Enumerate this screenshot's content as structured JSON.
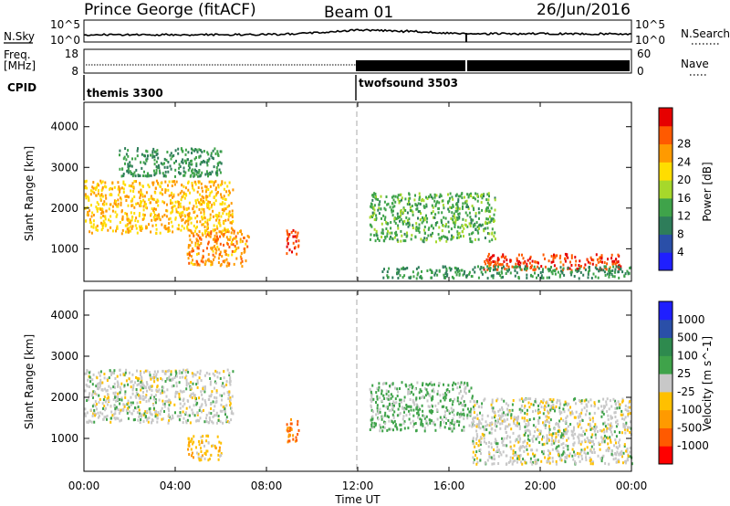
{
  "header": {
    "title": "Prince George (fitACF)",
    "beam": "Beam 01",
    "date": "26/Jun/2016"
  },
  "noise_panel": {
    "left_label": "N.Sky",
    "left_ticks": [
      "10^5",
      "10^0"
    ],
    "right_label": "N.Search",
    "right_ticks": [
      "10^5",
      "10^0"
    ]
  },
  "freq_panel": {
    "left_label_line1": "Freq.",
    "left_label_line2": "[MHz]",
    "left_ticks": [
      "18",
      "8"
    ],
    "right_label": "Nave",
    "right_ticks": [
      "60",
      "0"
    ]
  },
  "cpid": {
    "label": "CPID",
    "segments": [
      {
        "name": "themis 3300",
        "start_hour": 0,
        "end_hour": 12
      },
      {
        "name": "twofsound 3503",
        "start_hour": 12,
        "end_hour": 24
      }
    ]
  },
  "x_axis": {
    "label": "Time UT",
    "ticks": [
      "00:00",
      "04:00",
      "08:00",
      "12:00",
      "16:00",
      "20:00",
      "00:00"
    ]
  },
  "colors": {
    "power": [
      "#1f1fff",
      "#2a4fa8",
      "#2e7d5a",
      "#3fa34a",
      "#a6d82b",
      "#ffdd00",
      "#ff9a00",
      "#ff5a00",
      "#e60000"
    ],
    "velocity": [
      "#ff0000",
      "#ff5a00",
      "#ff9a00",
      "#ffc000",
      "#c8c8c8",
      "#3fa34a",
      "#2e8a4e",
      "#2a4fa8",
      "#1f1fff"
    ]
  },
  "chart_data": [
    {
      "type": "heatmap",
      "ylabel": "Slant Range [km]",
      "y_ticks": [
        "1000",
        "2000",
        "3000",
        "4000"
      ],
      "ylim": [
        200,
        4600
      ],
      "colorbar_label": "Power [dB]",
      "colorbar_ticks": [
        "4",
        "8",
        "12",
        "16",
        "20",
        "24",
        "28"
      ],
      "value_range": [
        0,
        30
      ],
      "regions": [
        {
          "t0": 0.0,
          "t1": 6.5,
          "r0": 1400,
          "r1": 2700,
          "value": 20
        },
        {
          "t0": 1.5,
          "t1": 6.0,
          "r0": 2800,
          "r1": 3500,
          "value": 10
        },
        {
          "t0": 4.5,
          "t1": 7.2,
          "r0": 600,
          "r1": 1500,
          "value": 22
        },
        {
          "t0": 8.8,
          "t1": 9.4,
          "r0": 900,
          "r1": 1500,
          "value": 26
        },
        {
          "t0": 12.5,
          "t1": 18.0,
          "r0": 1200,
          "r1": 2400,
          "value": 12
        },
        {
          "t0": 17.5,
          "t1": 23.5,
          "r0": 500,
          "r1": 900,
          "value": 26
        },
        {
          "t0": 13.0,
          "t1": 24.0,
          "r0": 300,
          "r1": 600,
          "value": 10
        }
      ]
    },
    {
      "type": "heatmap",
      "ylabel": "Slant Range [km]",
      "y_ticks": [
        "1000",
        "2000",
        "3000",
        "4000"
      ],
      "ylim": [
        200,
        4600
      ],
      "colorbar_label": "Velocity [m s^-1]",
      "colorbar_ticks": [
        "-1000",
        "-500",
        "-100",
        "-25",
        "25",
        "100",
        "500",
        "1000"
      ],
      "value_range": [
        -1000,
        1000
      ],
      "regions": [
        {
          "t0": 0.0,
          "t1": 6.5,
          "r0": 1400,
          "r1": 2700,
          "value": 0
        },
        {
          "t0": 4.5,
          "t1": 6.0,
          "r0": 500,
          "r1": 1100,
          "value": -200
        },
        {
          "t0": 8.8,
          "t1": 9.4,
          "r0": 900,
          "r1": 1500,
          "value": -600
        },
        {
          "t0": 12.5,
          "t1": 17.0,
          "r0": 1200,
          "r1": 2400,
          "value": 150
        },
        {
          "t0": 17.0,
          "t1": 24.0,
          "r0": 400,
          "r1": 2000,
          "value": 0
        }
      ]
    }
  ]
}
